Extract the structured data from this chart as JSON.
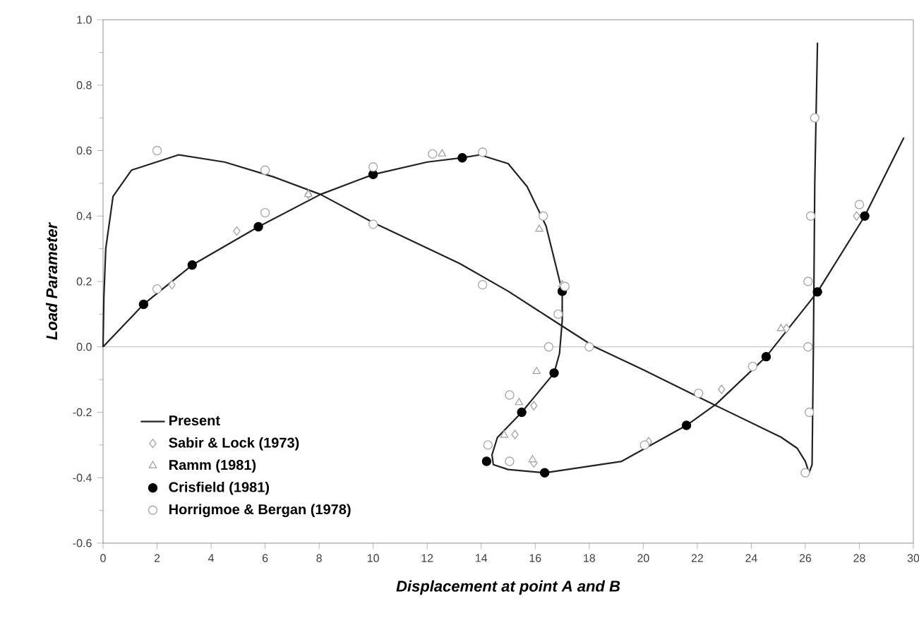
{
  "chart_data": {
    "type": "line",
    "xlabel": "Displacement  at  point  A  and  B",
    "ylabel": "Load  Parameter",
    "xlim": [
      0,
      30
    ],
    "ylim": [
      -0.6,
      1.0
    ],
    "xticks": [
      0,
      2,
      4,
      6,
      8,
      10,
      12,
      14,
      16,
      18,
      20,
      22,
      24,
      26,
      28,
      30
    ],
    "yticks": [
      -0.6,
      -0.4,
      {
        "value": -0.2,
        "label": "-0.2"
      },
      {
        "value": 0,
        "label": "0.0"
      },
      0.2,
      0.4,
      0.6,
      0.8,
      {
        "value": 1.0,
        "label": "1.0"
      }
    ],
    "legend": "bottom left",
    "marker": "none",
    "line_style": "solid",
    "ref_lines": [
      {
        "axis": "y",
        "value": 0,
        "color": "#aaaaaa"
      }
    ],
    "series": [
      {
        "name": "Present",
        "color": "#222222",
        "x": [
          0,
          0.03,
          0.1,
          0.37,
          1.05,
          2.8,
          4.5,
          6.3,
          8.05,
          10,
          13.2,
          15,
          16.5,
          18.2,
          20,
          22.7,
          25.1,
          25.7,
          26.0,
          26.14,
          26.25,
          26.3,
          26.35,
          26.45
        ],
        "values": [
          0,
          0.15,
          0.3,
          0.46,
          0.54,
          0.587,
          0.565,
          0.52,
          0.466,
          0.38,
          0.255,
          0.17,
          0.09,
          0,
          -0.07,
          -0.18,
          -0.276,
          -0.31,
          -0.35,
          -0.385,
          -0.36,
          0,
          0.5,
          0.93
        ]
      },
      {
        "name": "Sabir & Lock (1973)",
        "type": "scatter",
        "marker": "diamond",
        "color": "#aaaaaa",
        "x": [
          2.55,
          4.95,
          7.6,
          15.95,
          15.25,
          15.95,
          20.2,
          22.9,
          25.3,
          27.9
        ],
        "values": [
          0.19,
          0.354,
          0.466,
          -0.18,
          -0.268,
          -0.355,
          -0.29,
          -0.13,
          0.056,
          0.4
        ]
      },
      {
        "name": "Ramm (1981)",
        "type": "scatter",
        "marker": "triangle",
        "color": "#aaaaaa",
        "x": [
          12.55,
          7.6,
          16.15,
          16.05,
          15.4,
          14.85,
          15.9,
          25.1,
          17.0
        ],
        "values": [
          0.59,
          0.466,
          0.36,
          -0.075,
          -0.17,
          -0.27,
          -0.345,
          0.056,
          0.19
        ]
      },
      {
        "name": "Crisfield (1981)",
        "type": "scatter",
        "marker": "circle",
        "color": "#000000",
        "x": [
          1.5,
          3.3,
          5.75,
          10.0,
          13.3,
          17.0,
          16.7,
          15.5,
          14.2,
          16.35,
          21.6,
          24.55,
          26.45,
          28.2
        ],
        "values": [
          0.13,
          0.25,
          0.367,
          0.527,
          0.578,
          0.17,
          -0.08,
          -0.2,
          -0.35,
          -0.385,
          -0.24,
          -0.03,
          0.168,
          0.4
        ]
      },
      {
        "name": "Horrigmoe & Bergan (1978)",
        "type": "scatter",
        "marker": "circle",
        "color": "#aaaaaa",
        "x": [
          2.0,
          6.0,
          6.0,
          2.0,
          10,
          10,
          12.2,
          14.05,
          14.05,
          16.3,
          17.1,
          26.35,
          26.2,
          26.1,
          28.0,
          16.85,
          16.5,
          18.0,
          15.05,
          14.25,
          15.05,
          22.05,
          20.05,
          24.05,
          26.1,
          26.15,
          26.0
        ],
        "values": [
          0.6,
          0.54,
          0.41,
          0.177,
          0.55,
          0.375,
          0.59,
          0.595,
          0.19,
          0.4,
          0.185,
          0.7,
          0.4,
          0.2,
          0.435,
          0.1,
          0,
          0,
          -0.147,
          -0.3,
          -0.35,
          -0.142,
          -0.3,
          -0.06,
          0,
          -0.2,
          -0.385
        ]
      },
      {
        "color": "#222222",
        "x": [
          0,
          1.5,
          3.3,
          5.75,
          8.05,
          10.0,
          12,
          13.3,
          13.95,
          15.0,
          15.7,
          16.4,
          17.0,
          17.0,
          16.9,
          16.7,
          15.5,
          14.6,
          14.4,
          14.45,
          15.0,
          16.35,
          19.2,
          21.6,
          22.7,
          24.55,
          26.45,
          28.2,
          29.65
        ],
        "values": [
          0,
          0.13,
          0.25,
          0.367,
          0.466,
          0.527,
          0.565,
          0.578,
          0.587,
          0.56,
          0.49,
          0.37,
          0.17,
          0.08,
          -0.02,
          -0.08,
          -0.2,
          -0.277,
          -0.33,
          -0.36,
          -0.375,
          -0.385,
          -0.35,
          -0.24,
          -0.175,
          -0.03,
          0.168,
          0.4,
          0.64
        ]
      }
    ]
  }
}
